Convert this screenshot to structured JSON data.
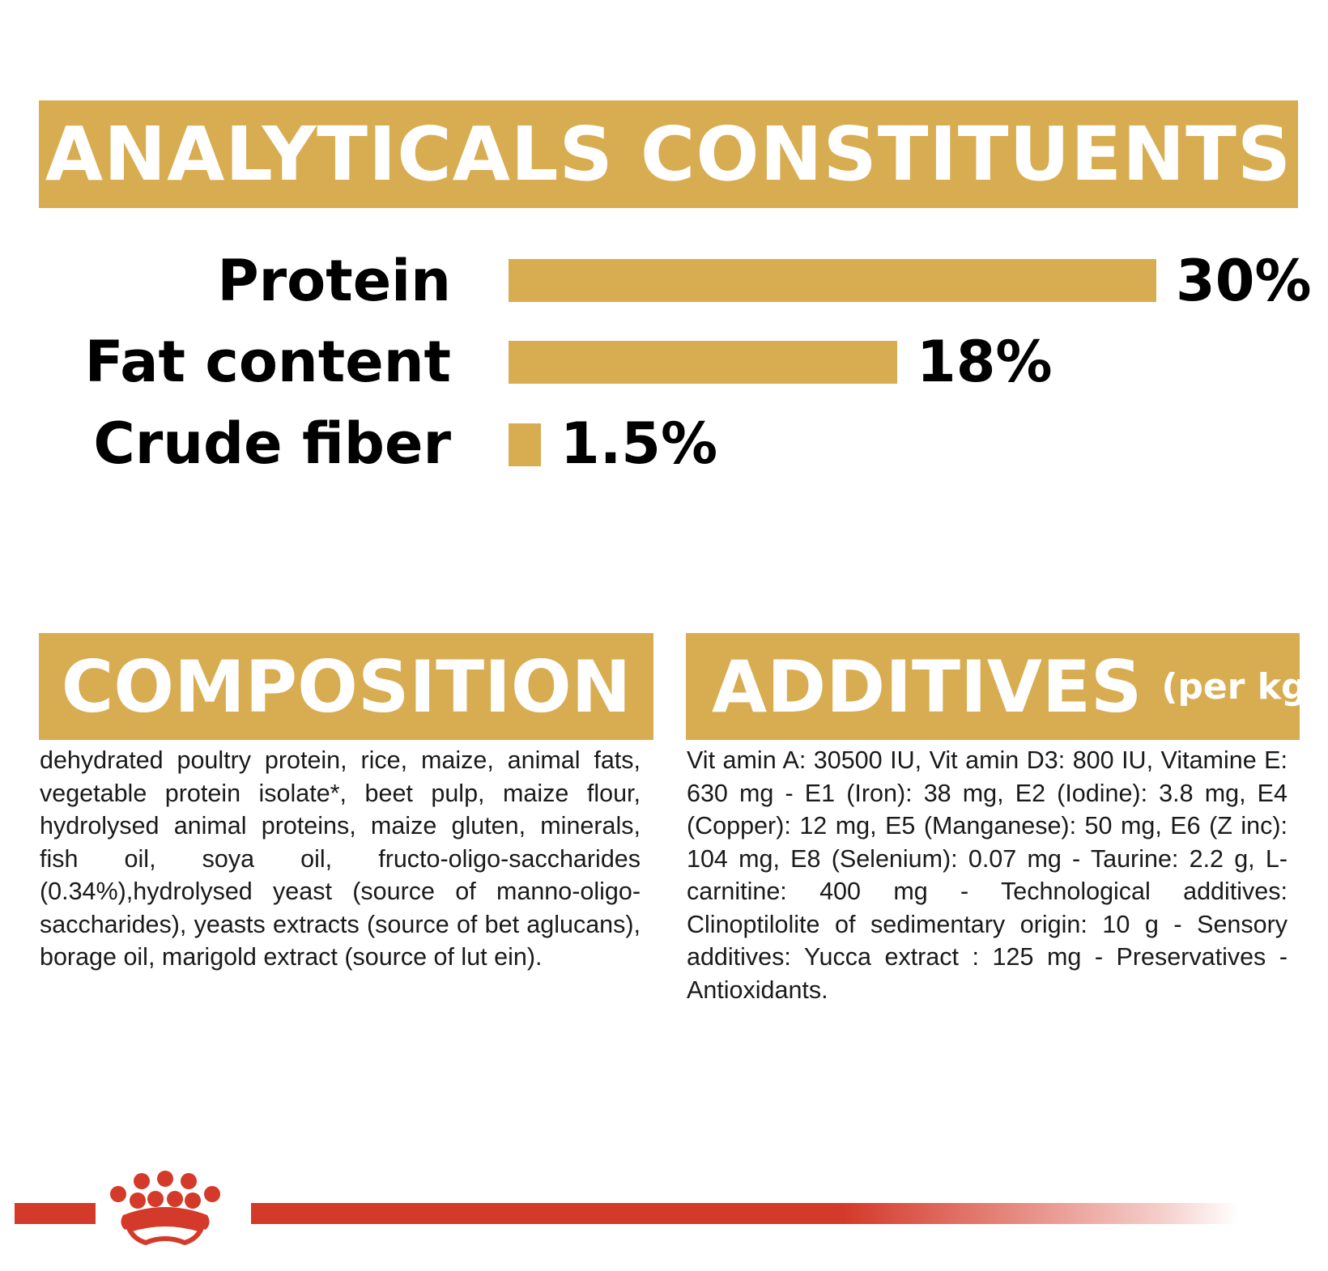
{
  "analytical": {
    "title": "ANALYTICALS CONSTITUENTS",
    "rows": [
      {
        "label": "Protein",
        "value_text": "30%",
        "value": 30
      },
      {
        "label": "Fat content",
        "value_text": "18%",
        "value": 18
      },
      {
        "label": "Crude fiber",
        "value_text": "1.5%",
        "value": 1.5
      }
    ]
  },
  "composition": {
    "title": "COMPOSITION",
    "text": "dehydrated poultry protein, rice, maize, animal fats, vegetable protein isolate*, beet pulp, maize flour, hydrolysed animal proteins, maize gluten, minerals, fish oil, soya oil, fructo-oligo-saccharides (0.34%),hydrolysed yeast (source of manno-oligo-saccharides), yeasts extracts (source of bet aglucans), borage oil, marigold extract (source of lut ein)."
  },
  "additives": {
    "title": "ADDITIVES",
    "subtitle": "(per kg)",
    "text": "Vit amin A: 30500 IU, Vit amin D3: 800 IU, Vitamine E: 630 mg - E1 (Iron): 38 mg, E2 (Iodine): 3.8 mg, E4 (Copper): 12 mg, E5 (Manganese): 50 mg, E6 (Z inc): 104 mg, E8 (Selenium): 0.07 mg - Taurine: 2.2 g, L-carnitine: 400 mg - Technological additives: Clinoptilolite of sedimentary origin: 10 g - Sensory additives: Yucca extract : 125 mg - Preservatives -Antioxidants."
  },
  "colors": {
    "accent": "#d8ad52",
    "brand_red": "#d43a2a"
  },
  "logo": {
    "icon": "crown-logo-icon"
  }
}
